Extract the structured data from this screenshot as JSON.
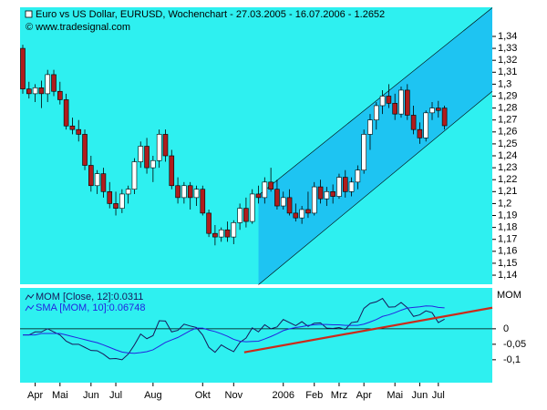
{
  "chart_data": {
    "type": "candlestick",
    "title": "Euro vs US Dollar, EURUSD, Wochenchart - 27.03.2005 - 16.07.2006 - 1.2652",
    "source": "© www.tradesignal.com",
    "categories": [
      null,
      null,
      "Apr",
      null,
      null,
      null,
      "Mai",
      null,
      null,
      null,
      null,
      "Jun",
      null,
      null,
      null,
      "Jul",
      null,
      null,
      null,
      null,
      null,
      "Aug",
      null,
      null,
      null,
      null,
      null,
      null,
      null,
      "Okt",
      null,
      null,
      null,
      null,
      "Nov",
      null,
      null,
      null,
      null,
      null,
      null,
      null,
      "2006",
      null,
      null,
      null,
      null,
      "Feb",
      null,
      null,
      null,
      "Mrz",
      null,
      null,
      null,
      "Apr",
      null,
      null,
      null,
      null,
      "Mai",
      null,
      null,
      null,
      "Jun",
      null,
      null,
      "Jul",
      null
    ],
    "open": [
      1.33,
      1.296,
      1.292,
      1.297,
      1.292,
      1.308,
      1.294,
      1.287,
      1.265,
      1.262,
      1.258,
      1.232,
      1.215,
      1.225,
      1.21,
      1.2,
      1.196,
      1.208,
      1.212,
      1.235,
      1.248,
      1.23,
      1.236,
      1.258,
      1.24,
      1.215,
      1.205,
      1.215,
      1.205,
      1.212,
      1.192,
      1.175,
      1.172,
      1.178,
      1.172,
      1.184,
      1.196,
      1.185,
      1.208,
      1.205,
      1.218,
      1.212,
      1.198,
      1.205,
      1.192,
      1.188,
      1.195,
      1.192,
      1.214,
      1.204,
      1.21,
      1.206,
      1.222,
      1.21,
      1.218,
      1.228,
      1.258,
      1.27,
      1.282,
      1.29,
      1.284,
      1.275,
      1.295,
      1.274,
      1.262,
      1.255,
      1.276,
      1.28,
      1.28
    ],
    "high": [
      1.333,
      1.302,
      1.3,
      1.303,
      1.312,
      1.312,
      1.302,
      1.292,
      1.272,
      1.27,
      1.262,
      1.24,
      1.228,
      1.23,
      1.218,
      1.21,
      1.212,
      1.215,
      1.238,
      1.252,
      1.255,
      1.24,
      1.262,
      1.262,
      1.245,
      1.222,
      1.218,
      1.218,
      1.215,
      1.215,
      1.195,
      1.182,
      1.18,
      1.185,
      1.186,
      1.2,
      1.205,
      1.212,
      1.215,
      1.222,
      1.23,
      1.22,
      1.21,
      1.212,
      1.2,
      1.198,
      1.21,
      1.218,
      1.22,
      1.214,
      1.216,
      1.225,
      1.228,
      1.222,
      1.232,
      1.262,
      1.275,
      1.285,
      1.295,
      1.3,
      1.292,
      1.298,
      1.3,
      1.282,
      1.268,
      1.278,
      1.285,
      1.286,
      1.282
    ],
    "low": [
      1.292,
      1.288,
      1.285,
      1.28,
      1.285,
      1.29,
      1.283,
      1.262,
      1.258,
      1.252,
      1.228,
      1.21,
      1.208,
      1.205,
      1.196,
      1.19,
      1.192,
      1.2,
      1.208,
      1.23,
      1.225,
      1.218,
      1.23,
      1.235,
      1.212,
      1.2,
      1.2,
      1.195,
      1.198,
      1.19,
      1.172,
      1.165,
      1.168,
      1.168,
      1.166,
      1.178,
      1.18,
      1.183,
      1.2,
      1.2,
      1.21,
      1.195,
      1.195,
      1.19,
      1.185,
      1.183,
      1.188,
      1.19,
      1.2,
      1.198,
      1.2,
      1.204,
      1.205,
      1.206,
      1.212,
      1.225,
      1.245,
      1.262,
      1.275,
      1.28,
      1.27,
      1.272,
      1.27,
      1.258,
      1.25,
      1.252,
      1.27,
      1.272,
      1.262
    ],
    "close": [
      1.296,
      1.292,
      1.297,
      1.292,
      1.308,
      1.294,
      1.287,
      1.265,
      1.262,
      1.258,
      1.232,
      1.215,
      1.225,
      1.21,
      1.2,
      1.196,
      1.208,
      1.212,
      1.235,
      1.248,
      1.23,
      1.236,
      1.258,
      1.24,
      1.215,
      1.205,
      1.215,
      1.205,
      1.212,
      1.192,
      1.175,
      1.172,
      1.178,
      1.172,
      1.184,
      1.196,
      1.185,
      1.208,
      1.205,
      1.218,
      1.212,
      1.198,
      1.205,
      1.192,
      1.188,
      1.195,
      1.192,
      1.214,
      1.204,
      1.21,
      1.206,
      1.222,
      1.21,
      1.218,
      1.228,
      1.258,
      1.27,
      1.282,
      1.29,
      1.284,
      1.275,
      1.295,
      1.274,
      1.262,
      1.255,
      1.276,
      1.28,
      1.278,
      1.2652
    ],
    "up_color": "#ffffff",
    "down_color": "#b01c1c",
    "xlim": [
      -0.44,
      75.7
    ],
    "ylim": [
      1.1324,
      1.3644
    ],
    "yticks": [
      {
        "value": 1.14,
        "label": "1,14"
      },
      {
        "value": 1.15,
        "label": "1,15"
      },
      {
        "value": 1.16,
        "label": "1,16"
      },
      {
        "value": 1.17,
        "label": "1,17"
      },
      {
        "value": 1.18,
        "label": "1,18"
      },
      {
        "value": 1.19,
        "label": "1,19"
      },
      {
        "value": 1.2,
        "label": "1,2"
      },
      {
        "value": 1.21,
        "label": "1,21"
      },
      {
        "value": 1.22,
        "label": "1,22"
      },
      {
        "value": 1.23,
        "label": "1,23"
      },
      {
        "value": 1.24,
        "label": "1,24"
      },
      {
        "value": 1.25,
        "label": "1,25"
      },
      {
        "value": 1.26,
        "label": "1,26"
      },
      {
        "value": 1.27,
        "label": "1,27"
      },
      {
        "value": 1.28,
        "label": "1,28"
      },
      {
        "value": 1.29,
        "label": "1,29"
      },
      {
        "value": 1.3,
        "label": "1,3"
      },
      {
        "value": 1.31,
        "label": "1,31"
      },
      {
        "value": 1.32,
        "label": "1,32"
      },
      {
        "value": 1.33,
        "label": "1,33"
      },
      {
        "value": 1.34,
        "label": "1,34"
      }
    ],
    "channel": {
      "x": [
        38,
        75.7
      ],
      "lower": [
        1.132,
        1.294
      ],
      "upper": [
        1.207,
        1.364
      ],
      "color": "#1ec4f2"
    },
    "indicator": {
      "type": "line",
      "label": "MOM",
      "ylim": [
        -0.174,
        0.132
      ],
      "yticks": [
        0,
        {
          "value": -0.05,
          "label": "-0,05"
        },
        {
          "value": -0.1,
          "label": "-0,1"
        }
      ],
      "series": [
        {
          "name": "MOM [Close, 12]:0.0311",
          "color": "#18185a",
          "values": [
            -0.02,
            -0.02,
            -0.01,
            -0.01,
            0.0,
            -0.01,
            -0.02,
            -0.04,
            -0.05,
            -0.05,
            -0.06,
            -0.07,
            -0.071,
            -0.082,
            -0.097,
            -0.096,
            -0.1,
            -0.082,
            -0.052,
            -0.017,
            -0.032,
            -0.022,
            0.026,
            0.025,
            -0.01,
            -0.005,
            0.015,
            0.009,
            0.004,
            -0.02,
            -0.06,
            -0.076,
            -0.052,
            -0.064,
            -0.074,
            -0.044,
            -0.03,
            0.003,
            -0.01,
            0.013,
            0,
            0.006,
            0.03,
            0.02,
            0.01,
            0.023,
            0.008,
            0.018,
            0.019,
            0.002,
            0.001,
            0.004,
            -0.002,
            0.02,
            0.023,
            0.066,
            0.082,
            0.087,
            0.098,
            0.07,
            0.071,
            0.085,
            0.068,
            0.04,
            0.045,
            0.058,
            0.052,
            0.02,
            0.0311
          ]
        },
        {
          "name": "SMA [MOM, 10]:0.06748",
          "color": "#2424e0",
          "values": [
            -0.02,
            -0.02,
            -0.02,
            -0.015,
            -0.015,
            -0.015,
            -0.015,
            -0.02,
            -0.025,
            -0.03,
            -0.035,
            -0.04,
            -0.045,
            -0.052,
            -0.06,
            -0.068,
            -0.075,
            -0.078,
            -0.079,
            -0.077,
            -0.074,
            -0.068,
            -0.056,
            -0.044,
            -0.036,
            -0.028,
            -0.017,
            -0.006,
            0.002,
            0.002,
            -0.004,
            -0.009,
            -0.016,
            -0.024,
            -0.034,
            -0.04,
            -0.042,
            -0.041,
            -0.04,
            -0.033,
            -0.025,
            -0.016,
            -0.006,
            0.0,
            0.004,
            0.007,
            0.011,
            0.013,
            0.014,
            0.014,
            0.013,
            0.013,
            0.011,
            0.011,
            0.011,
            0.015,
            0.022,
            0.03,
            0.04,
            0.045,
            0.052,
            0.06,
            0.067,
            0.069,
            0.071,
            0.074,
            0.073,
            0.069,
            0.06748
          ]
        }
      ],
      "trendline": {
        "x": [
          35.7,
          75.7
        ],
        "values": [
          -0.076,
          0.068
        ],
        "color": "#cc2a1a"
      }
    }
  }
}
